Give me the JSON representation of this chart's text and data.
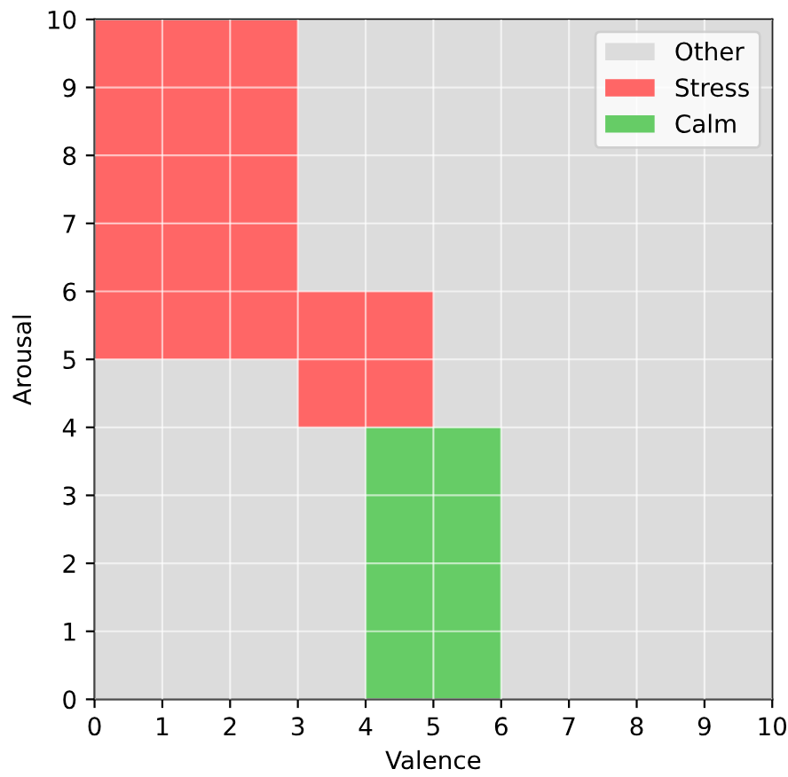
{
  "chart_data": {
    "type": "bar",
    "xlabel": "Valence",
    "ylabel": "Arousal",
    "series": [
      {
        "name": "Other",
        "color": "#dcdcdc",
        "x": [
          0.5,
          1.5,
          2.5,
          3.5,
          4.5,
          5.5,
          6.5,
          7.5,
          8.5,
          9.5
        ],
        "base": [
          0,
          0,
          0,
          0,
          6,
          4,
          0,
          0,
          0,
          0
        ],
        "values": [
          5,
          5,
          5,
          4,
          4,
          6,
          10,
          10,
          10,
          10
        ]
      },
      {
        "color": "#dcdcdc",
        "x": [
          3.5
        ],
        "base": [
          6
        ],
        "values": [
          4
        ]
      },
      {
        "name": "Stress",
        "color": "#ff6666",
        "x": [
          0.5,
          1.5,
          2.5,
          3.5,
          4.5
        ],
        "base": [
          5,
          5,
          5,
          4,
          4
        ],
        "values": [
          5,
          5,
          5,
          2,
          2
        ]
      },
      {
        "name": "Calm",
        "color": "#66cc66",
        "x": [
          4.5,
          5.5
        ],
        "base": [
          0,
          0
        ],
        "values": [
          4,
          4
        ]
      }
    ],
    "xlim": [
      0,
      10
    ],
    "ylim": [
      0,
      10
    ],
    "xticks": [
      0,
      1,
      2,
      3,
      4,
      5,
      6,
      7,
      8,
      9,
      10
    ],
    "yticks": [
      0,
      1,
      2,
      3,
      4,
      5,
      6,
      7,
      8,
      9,
      10
    ],
    "grid": true,
    "legend": "top right"
  }
}
